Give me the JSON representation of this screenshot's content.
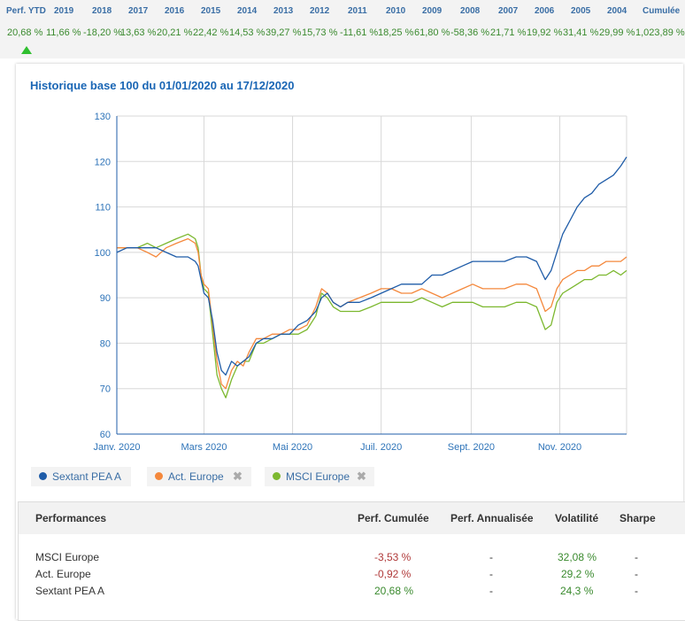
{
  "perf_bar": {
    "headers": [
      "Perf. YTD",
      "2019",
      "2018",
      "2017",
      "2016",
      "2015",
      "2014",
      "2013",
      "2012",
      "2011",
      "2010",
      "2009",
      "2008",
      "2007",
      "2006",
      "2005",
      "2004",
      "Cumulée"
    ],
    "values": [
      "20,68 %",
      "11,66 %",
      "-18,20 %",
      "13,63 %",
      "20,21 %",
      "22,42 %",
      "14,53 %",
      "39,27 %",
      "15,73 %",
      "-11,61 %",
      "18,25 %",
      "61,80 %",
      "-58,36 %",
      "21,71 %",
      "19,92 %",
      "31,41 %",
      "29,99 %",
      "1,023,89 %"
    ]
  },
  "chart_data": {
    "type": "line",
    "title": "Historique base 100 du 01/01/2020 au 17/12/2020",
    "xlabel": "",
    "ylabel": "",
    "x_tick_labels": [
      "Janv. 2020",
      "Mars 2020",
      "Mai 2020",
      "Juil. 2020",
      "Sept. 2020",
      "Nov. 2020"
    ],
    "y_ticks": [
      60,
      70,
      80,
      90,
      100,
      110,
      120,
      130
    ],
    "ylim": [
      60,
      130
    ],
    "x_unit": "day of year 2020",
    "xlim": [
      1,
      352
    ],
    "x_ticks": [
      1,
      61,
      122,
      183,
      245,
      306
    ],
    "grid": true,
    "legend_position": "bottom",
    "series": [
      {
        "name": "Sextant PEA A",
        "color": "#1f5ca8",
        "points": [
          [
            1,
            100
          ],
          [
            8,
            101
          ],
          [
            15,
            101
          ],
          [
            22,
            101
          ],
          [
            28,
            101
          ],
          [
            35,
            100
          ],
          [
            42,
            99
          ],
          [
            50,
            99
          ],
          [
            55,
            98
          ],
          [
            57,
            97
          ],
          [
            59,
            94
          ],
          [
            61,
            91
          ],
          [
            64,
            90
          ],
          [
            67,
            85
          ],
          [
            70,
            78
          ],
          [
            73,
            74
          ],
          [
            76,
            73
          ],
          [
            80,
            76
          ],
          [
            84,
            75
          ],
          [
            88,
            76
          ],
          [
            92,
            77
          ],
          [
            97,
            80
          ],
          [
            102,
            81
          ],
          [
            108,
            81
          ],
          [
            114,
            82
          ],
          [
            120,
            82
          ],
          [
            126,
            84
          ],
          [
            132,
            85
          ],
          [
            138,
            87
          ],
          [
            142,
            90
          ],
          [
            146,
            91
          ],
          [
            150,
            89
          ],
          [
            155,
            88
          ],
          [
            160,
            89
          ],
          [
            168,
            89
          ],
          [
            176,
            90
          ],
          [
            183,
            91
          ],
          [
            190,
            92
          ],
          [
            197,
            93
          ],
          [
            204,
            93
          ],
          [
            211,
            93
          ],
          [
            218,
            95
          ],
          [
            225,
            95
          ],
          [
            232,
            96
          ],
          [
            239,
            97
          ],
          [
            246,
            98
          ],
          [
            253,
            98
          ],
          [
            260,
            98
          ],
          [
            268,
            98
          ],
          [
            276,
            99
          ],
          [
            283,
            99
          ],
          [
            290,
            98
          ],
          [
            296,
            94
          ],
          [
            300,
            96
          ],
          [
            304,
            100
          ],
          [
            308,
            104
          ],
          [
            313,
            107
          ],
          [
            318,
            110
          ],
          [
            323,
            112
          ],
          [
            328,
            113
          ],
          [
            333,
            115
          ],
          [
            338,
            116
          ],
          [
            343,
            117
          ],
          [
            348,
            119
          ],
          [
            352,
            121
          ]
        ]
      },
      {
        "name": "Act. Europe",
        "color": "#f4883c",
        "points": [
          [
            1,
            101
          ],
          [
            8,
            101
          ],
          [
            15,
            101
          ],
          [
            22,
            100
          ],
          [
            28,
            99
          ],
          [
            35,
            101
          ],
          [
            42,
            102
          ],
          [
            50,
            103
          ],
          [
            55,
            102
          ],
          [
            57,
            100
          ],
          [
            59,
            95
          ],
          [
            61,
            93
          ],
          [
            64,
            92
          ],
          [
            67,
            84
          ],
          [
            70,
            76
          ],
          [
            73,
            71
          ],
          [
            76,
            70
          ],
          [
            80,
            74
          ],
          [
            84,
            76
          ],
          [
            88,
            75
          ],
          [
            92,
            78
          ],
          [
            97,
            81
          ],
          [
            102,
            81
          ],
          [
            108,
            82
          ],
          [
            114,
            82
          ],
          [
            120,
            83
          ],
          [
            126,
            83
          ],
          [
            132,
            84
          ],
          [
            138,
            88
          ],
          [
            142,
            92
          ],
          [
            146,
            91
          ],
          [
            150,
            89
          ],
          [
            155,
            88
          ],
          [
            160,
            89
          ],
          [
            168,
            90
          ],
          [
            176,
            91
          ],
          [
            183,
            92
          ],
          [
            190,
            92
          ],
          [
            197,
            91
          ],
          [
            204,
            91
          ],
          [
            211,
            92
          ],
          [
            218,
            91
          ],
          [
            225,
            90
          ],
          [
            232,
            91
          ],
          [
            239,
            92
          ],
          [
            246,
            93
          ],
          [
            253,
            92
          ],
          [
            260,
            92
          ],
          [
            268,
            92
          ],
          [
            276,
            93
          ],
          [
            283,
            93
          ],
          [
            290,
            92
          ],
          [
            296,
            87
          ],
          [
            300,
            88
          ],
          [
            304,
            92
          ],
          [
            308,
            94
          ],
          [
            313,
            95
          ],
          [
            318,
            96
          ],
          [
            323,
            96
          ],
          [
            328,
            97
          ],
          [
            333,
            97
          ],
          [
            338,
            98
          ],
          [
            343,
            98
          ],
          [
            348,
            98
          ],
          [
            352,
            99
          ]
        ]
      },
      {
        "name": "MSCI Europe",
        "color": "#7cb82f",
        "points": [
          [
            1,
            101
          ],
          [
            8,
            101
          ],
          [
            15,
            101
          ],
          [
            22,
            102
          ],
          [
            28,
            101
          ],
          [
            35,
            102
          ],
          [
            42,
            103
          ],
          [
            50,
            104
          ],
          [
            55,
            103
          ],
          [
            57,
            101
          ],
          [
            59,
            95
          ],
          [
            61,
            92
          ],
          [
            64,
            91
          ],
          [
            67,
            82
          ],
          [
            70,
            73
          ],
          [
            73,
            70
          ],
          [
            76,
            68
          ],
          [
            80,
            72
          ],
          [
            84,
            75
          ],
          [
            88,
            76
          ],
          [
            92,
            76
          ],
          [
            97,
            80
          ],
          [
            102,
            80
          ],
          [
            108,
            81
          ],
          [
            114,
            82
          ],
          [
            120,
            82
          ],
          [
            126,
            82
          ],
          [
            132,
            83
          ],
          [
            138,
            86
          ],
          [
            142,
            91
          ],
          [
            146,
            90
          ],
          [
            150,
            88
          ],
          [
            155,
            87
          ],
          [
            160,
            87
          ],
          [
            168,
            87
          ],
          [
            176,
            88
          ],
          [
            183,
            89
          ],
          [
            190,
            89
          ],
          [
            197,
            89
          ],
          [
            204,
            89
          ],
          [
            211,
            90
          ],
          [
            218,
            89
          ],
          [
            225,
            88
          ],
          [
            232,
            89
          ],
          [
            239,
            89
          ],
          [
            246,
            89
          ],
          [
            253,
            88
          ],
          [
            260,
            88
          ],
          [
            268,
            88
          ],
          [
            276,
            89
          ],
          [
            283,
            89
          ],
          [
            290,
            88
          ],
          [
            296,
            83
          ],
          [
            300,
            84
          ],
          [
            304,
            89
          ],
          [
            308,
            91
          ],
          [
            313,
            92
          ],
          [
            318,
            93
          ],
          [
            323,
            94
          ],
          [
            328,
            94
          ],
          [
            333,
            95
          ],
          [
            338,
            95
          ],
          [
            343,
            96
          ],
          [
            348,
            95
          ],
          [
            352,
            96
          ]
        ]
      }
    ]
  },
  "legend": [
    {
      "label": "Sextant PEA A",
      "color": "#1f5ca8",
      "removable": false
    },
    {
      "label": "Act. Europe",
      "color": "#f4883c",
      "removable": true
    },
    {
      "label": "MSCI Europe",
      "color": "#7cb82f",
      "removable": true
    }
  ],
  "remove_glyph": "✖",
  "table": {
    "headers": [
      "Performances",
      "Perf. Cumulée",
      "Perf. Annualisée",
      "Volatilité",
      "Sharpe"
    ],
    "rows": [
      {
        "name": "MSCI Europe",
        "cumul": "-3,53 %",
        "annual": "-",
        "vol": "32,08 %",
        "sharpe": "-"
      },
      {
        "name": "Act. Europe",
        "cumul": "-0,92 %",
        "annual": "-",
        "vol": "29,2 %",
        "sharpe": "-"
      },
      {
        "name": "Sextant PEA A",
        "cumul": "20,68 %",
        "annual": "-",
        "vol": "24,3 %",
        "sharpe": "-"
      }
    ]
  }
}
